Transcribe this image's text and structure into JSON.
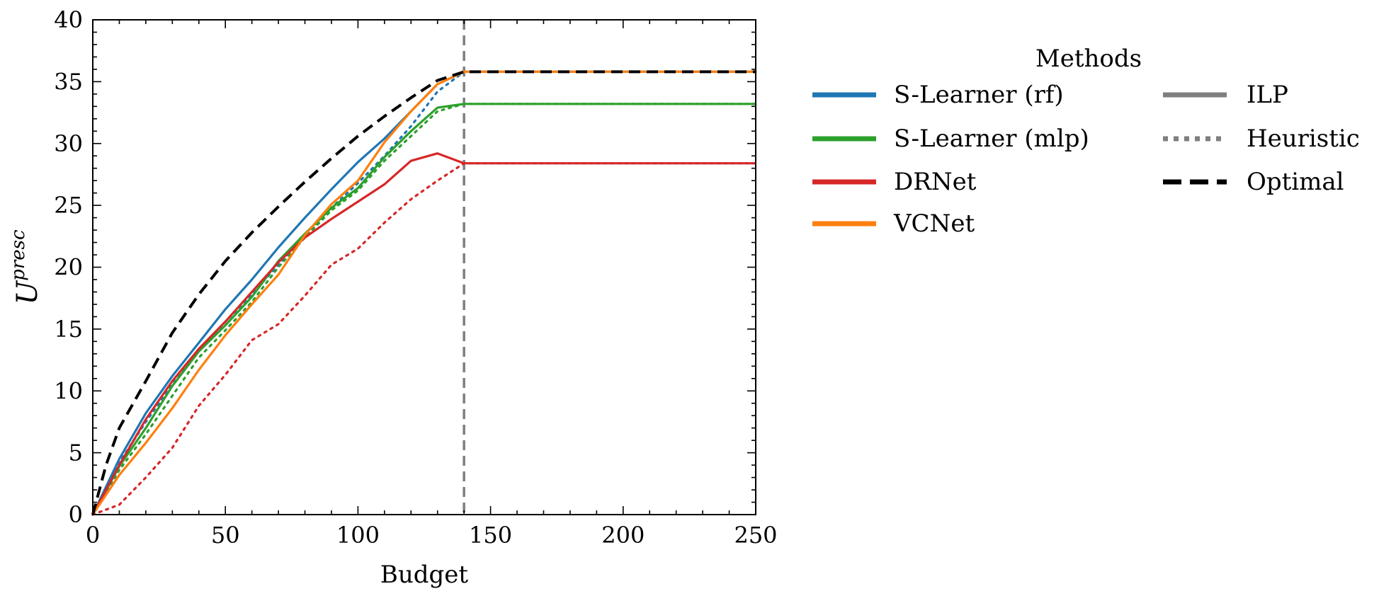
{
  "chart_data": {
    "type": "line",
    "xlabel": "Budget",
    "ylabel": "U",
    "ylabel_superscript": "presc",
    "xlim": [
      0,
      250
    ],
    "ylim": [
      0,
      40
    ],
    "xticks": [
      0,
      50,
      100,
      150,
      200,
      250
    ],
    "yticks": [
      0,
      5,
      10,
      15,
      20,
      25,
      30,
      35,
      40
    ],
    "grid": false,
    "vline": {
      "x": 140,
      "color": "#7f7f7f",
      "style": "dashed"
    },
    "legend": {
      "placement": "outside-right",
      "title": "Methods",
      "methods": [
        {
          "name": "S-Learner (rf)",
          "color": "#1f77b4"
        },
        {
          "name": "S-Learner (mlp)",
          "color": "#2ca02c"
        },
        {
          "name": "DRNet",
          "color": "#d62728"
        },
        {
          "name": "VCNet",
          "color": "#ff7f0e"
        }
      ],
      "styles": [
        {
          "name": "ILP",
          "dash": "solid",
          "color": "#7f7f7f"
        },
        {
          "name": "Heuristic",
          "dash": "dotted",
          "color": "#7f7f7f"
        },
        {
          "name": "Optimal",
          "dash": "dashed",
          "color": "#000000"
        }
      ]
    },
    "series": [
      {
        "method": "S-Learner (rf)",
        "style": "ILP",
        "color": "#1f77b4",
        "x": [
          0,
          10,
          20,
          30,
          40,
          50,
          60,
          70,
          80,
          90,
          100,
          110,
          120,
          130,
          140,
          250
        ],
        "y": [
          0,
          4.5,
          8.2,
          11.2,
          13.9,
          16.6,
          19.0,
          21.6,
          24.0,
          26.3,
          28.5,
          30.4,
          32.6,
          34.8,
          35.8,
          35.8
        ]
      },
      {
        "method": "S-Learner (rf)",
        "style": "Heuristic",
        "color": "#1f77b4",
        "x": [
          0,
          10,
          20,
          30,
          40,
          50,
          60,
          70,
          80,
          90,
          100,
          110,
          120,
          130,
          140,
          250
        ],
        "y": [
          0,
          4.2,
          7.5,
          10.5,
          13.2,
          15.6,
          17.8,
          20.2,
          22.6,
          24.8,
          26.8,
          29.0,
          31.4,
          34.2,
          35.8,
          35.8
        ]
      },
      {
        "method": "S-Learner (mlp)",
        "style": "ILP",
        "color": "#2ca02c",
        "x": [
          0,
          10,
          20,
          30,
          40,
          50,
          60,
          70,
          80,
          90,
          100,
          110,
          120,
          130,
          140,
          250
        ],
        "y": [
          0,
          3.9,
          7.0,
          10.4,
          13.2,
          15.3,
          17.6,
          20.5,
          22.7,
          24.8,
          26.4,
          28.9,
          31.0,
          32.9,
          33.2,
          33.2
        ]
      },
      {
        "method": "S-Learner (mlp)",
        "style": "Heuristic",
        "color": "#2ca02c",
        "x": [
          0,
          10,
          20,
          30,
          40,
          50,
          60,
          70,
          80,
          90,
          100,
          110,
          120,
          130,
          140,
          250
        ],
        "y": [
          0,
          3.6,
          6.5,
          9.6,
          12.7,
          14.9,
          17.2,
          20.0,
          22.4,
          24.6,
          26.2,
          28.6,
          30.6,
          32.6,
          33.2,
          33.2
        ]
      },
      {
        "method": "DRNet",
        "style": "ILP",
        "color": "#d62728",
        "x": [
          0,
          10,
          20,
          30,
          40,
          50,
          60,
          70,
          80,
          90,
          100,
          110,
          120,
          130,
          140,
          250
        ],
        "y": [
          0,
          4.0,
          7.7,
          10.8,
          13.4,
          15.6,
          18.0,
          20.4,
          22.4,
          23.9,
          25.3,
          26.7,
          28.6,
          29.2,
          28.4,
          28.4
        ]
      },
      {
        "method": "DRNet",
        "style": "Heuristic",
        "color": "#d62728",
        "x": [
          0,
          10,
          20,
          30,
          40,
          50,
          60,
          70,
          80,
          90,
          100,
          110,
          120,
          130,
          140,
          250
        ],
        "y": [
          0,
          0.8,
          3.0,
          5.4,
          8.8,
          11.3,
          14.1,
          15.4,
          17.7,
          20.2,
          21.5,
          23.6,
          25.5,
          27.0,
          28.4,
          28.4
        ]
      },
      {
        "method": "VCNet",
        "style": "ILP",
        "color": "#ff7f0e",
        "x": [
          0,
          10,
          20,
          30,
          40,
          50,
          60,
          70,
          80,
          90,
          100,
          110,
          120,
          130,
          140,
          250
        ],
        "y": [
          0,
          3.2,
          5.8,
          8.6,
          11.7,
          14.5,
          17.0,
          19.4,
          22.6,
          25.1,
          27.0,
          30.1,
          32.6,
          34.8,
          35.8,
          35.8
        ]
      },
      {
        "method": "Optimal",
        "style": "Optimal",
        "color": "#000000",
        "x": [
          0,
          5,
          10,
          20,
          30,
          40,
          50,
          60,
          70,
          80,
          90,
          100,
          110,
          120,
          130,
          140,
          250
        ],
        "y": [
          0,
          4.0,
          7.0,
          10.8,
          14.7,
          17.8,
          20.5,
          22.8,
          24.9,
          26.9,
          28.8,
          30.6,
          32.2,
          33.7,
          35.1,
          35.8,
          35.8
        ]
      }
    ]
  }
}
